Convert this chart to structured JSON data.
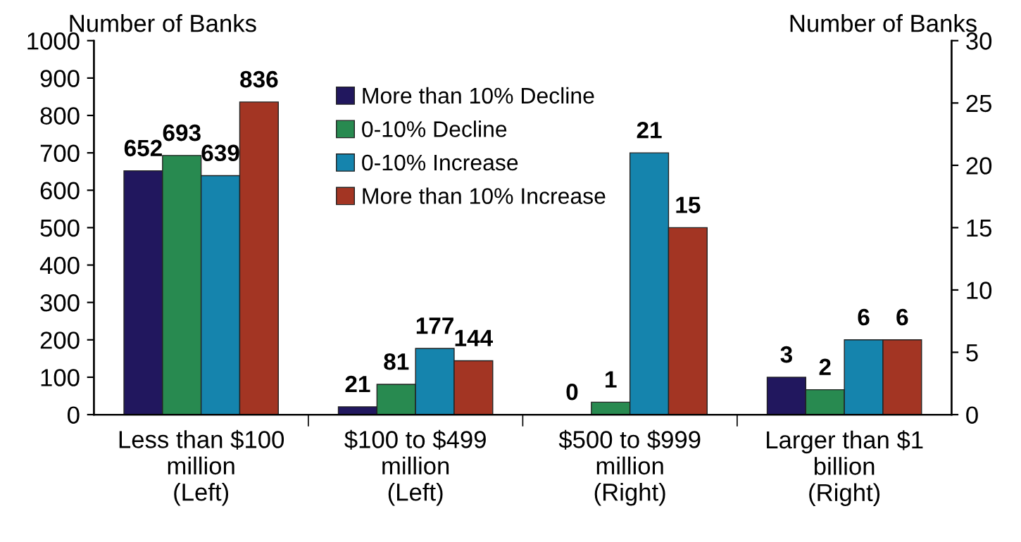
{
  "chart_data": {
    "type": "bar",
    "categories": [
      "Less than $100\nmillion\n(Left)",
      "$100 to $499\nmillion\n(Left)",
      "$500 to $999\nmillion\n(Right)",
      "Larger than $1\nbillion\n(Right)"
    ],
    "ylabel": "Number of Banks",
    "y2label": "Number of Banks",
    "ylim": [
      0,
      1000
    ],
    "yticks": [
      0,
      100,
      200,
      300,
      400,
      500,
      600,
      700,
      800,
      900,
      1000
    ],
    "y2lim": [
      0,
      30
    ],
    "y2ticks": [
      0,
      5,
      10,
      15,
      20,
      25,
      30
    ],
    "series": [
      {
        "name": "More than 10% Decline",
        "color": "#21175e",
        "values": [
          652,
          21,
          null,
          null
        ]
      },
      {
        "name": "0-10% Decline",
        "color": "#288a50",
        "values": [
          693,
          81,
          null,
          null
        ]
      },
      {
        "name": "0-10% Increase",
        "color": "#1584ad",
        "values": [
          639,
          177,
          null,
          null
        ]
      },
      {
        "name": "More than 10% Increase",
        "color": "#a33523",
        "values": [
          836,
          144,
          null,
          null
        ]
      },
      {
        "color": "#21175e",
        "axis": "y2",
        "values": [
          null,
          null,
          0,
          3
        ]
      },
      {
        "color": "#288a50",
        "axis": "y2",
        "values": [
          null,
          null,
          1,
          2
        ]
      },
      {
        "color": "#1584ad",
        "axis": "y2",
        "values": [
          null,
          null,
          21,
          6
        ]
      },
      {
        "color": "#a33523",
        "axis": "y2",
        "values": [
          null,
          null,
          15,
          6
        ]
      }
    ],
    "data_labels": true,
    "legend": "top",
    "grid": false
  }
}
